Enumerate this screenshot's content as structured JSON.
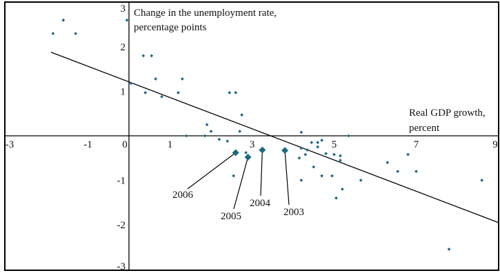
{
  "chart_data": {
    "type": "scatter",
    "title": "",
    "ylabel_lines": [
      "Change in the unemployment rate,",
      "percentage points"
    ],
    "xlabel_lines": [
      "Real GDP growth,",
      "percent"
    ],
    "xlim": [
      -3,
      9
    ],
    "ylim": [
      -3,
      3
    ],
    "x_tick_labels": [
      "-3",
      "-1",
      "0",
      "1",
      "3",
      "5",
      "7",
      "9"
    ],
    "x_tick_values": [
      -3,
      -1,
      0,
      1,
      3,
      5,
      7,
      9
    ],
    "y_tick_labels": [
      "3",
      "2",
      "1",
      "-1",
      "-2",
      "-3"
    ],
    "y_tick_values": [
      3,
      2,
      1,
      -1,
      -2,
      -3
    ],
    "grid": false,
    "point_color": "#1b6a82",
    "line_color": "#000000",
    "fit_line": {
      "x": [
        -1.9,
        9.0
      ],
      "y": [
        1.88,
        -1.95
      ]
    },
    "points": [
      {
        "x": -1.85,
        "y": 2.3
      },
      {
        "x": -1.6,
        "y": 2.6
      },
      {
        "x": -1.3,
        "y": 2.3
      },
      {
        "x": -0.05,
        "y": 2.6
      },
      {
        "x": 0.35,
        "y": 1.8
      },
      {
        "x": 0.55,
        "y": 1.8
      },
      {
        "x": 0.65,
        "y": 1.28
      },
      {
        "x": 1.3,
        "y": 1.28
      },
      {
        "x": 0.05,
        "y": 1.18
      },
      {
        "x": 0.4,
        "y": 0.97
      },
      {
        "x": 0.8,
        "y": 0.88
      },
      {
        "x": 1.2,
        "y": 0.97
      },
      {
        "x": 2.45,
        "y": 0.97
      },
      {
        "x": 2.6,
        "y": 0.97
      },
      {
        "x": 2.75,
        "y": 0.47
      },
      {
        "x": 1.9,
        "y": 0.25
      },
      {
        "x": 2.0,
        "y": 0.1
      },
      {
        "x": 2.7,
        "y": 0.1
      },
      {
        "x": 1.4,
        "y": 0.0
      },
      {
        "x": 1.85,
        "y": 0.0
      },
      {
        "x": 2.2,
        "y": -0.08
      },
      {
        "x": 2.4,
        "y": -0.12
      },
      {
        "x": 2.85,
        "y": -0.38
      },
      {
        "x": 2.55,
        "y": -0.9
      },
      {
        "x": 4.2,
        "y": 0.08
      },
      {
        "x": 4.2,
        "y": -0.28
      },
      {
        "x": 4.35,
        "y": -0.32
      },
      {
        "x": 4.45,
        "y": -0.15
      },
      {
        "x": 4.6,
        "y": -0.15
      },
      {
        "x": 4.6,
        "y": -0.25
      },
      {
        "x": 4.7,
        "y": -0.1
      },
      {
        "x": 4.15,
        "y": -0.5
      },
      {
        "x": 4.3,
        "y": -0.42
      },
      {
        "x": 4.5,
        "y": -0.7
      },
      {
        "x": 4.7,
        "y": -0.9
      },
      {
        "x": 4.8,
        "y": -0.4
      },
      {
        "x": 5.0,
        "y": -0.42
      },
      {
        "x": 5.15,
        "y": -0.45
      },
      {
        "x": 5.15,
        "y": -0.55
      },
      {
        "x": 5.35,
        "y": 0.0
      },
      {
        "x": 4.2,
        "y": -1.0
      },
      {
        "x": 4.95,
        "y": -0.9
      },
      {
        "x": 5.2,
        "y": -1.2
      },
      {
        "x": 5.05,
        "y": -1.4
      },
      {
        "x": 5.65,
        "y": -1.0
      },
      {
        "x": 6.3,
        "y": -0.6
      },
      {
        "x": 6.55,
        "y": -0.8
      },
      {
        "x": 6.8,
        "y": -0.42
      },
      {
        "x": 7.0,
        "y": -0.8
      },
      {
        "x": 7.8,
        "y": -2.55
      },
      {
        "x": 8.6,
        "y": -1.0
      }
    ],
    "highlighted_points": [
      {
        "label": "2006",
        "x": 2.6,
        "y": -0.38
      },
      {
        "label": "2005",
        "x": 2.9,
        "y": -0.48
      },
      {
        "label": "2004",
        "x": 3.25,
        "y": -0.32
      },
      {
        "label": "2003",
        "x": 3.8,
        "y": -0.33
      }
    ]
  }
}
